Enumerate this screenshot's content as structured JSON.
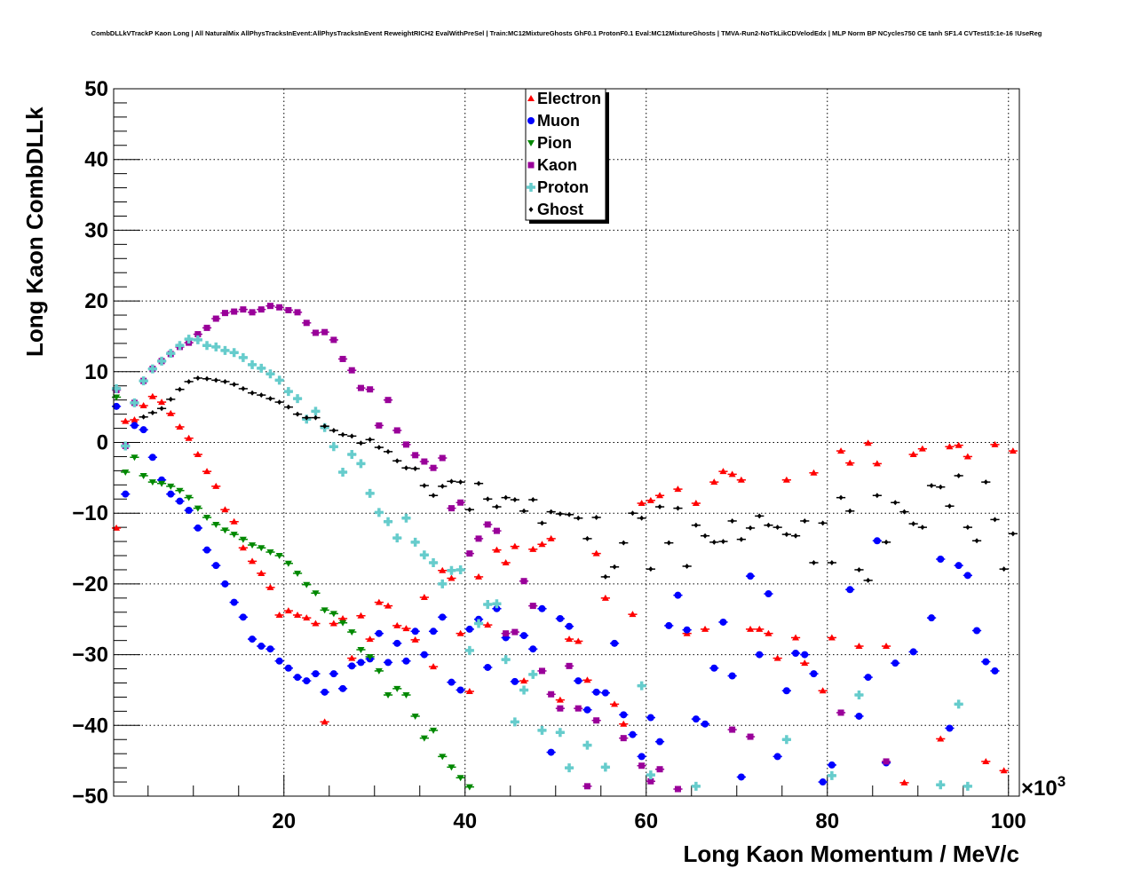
{
  "chart_data": {
    "type": "scatter",
    "title": "CombDLLkVTrackP Kaon Long | All NaturalMix AllPhysTracksInEvent:AllPhysTracksInEvent ReweightRICH2 EvalWithPreSel | Train:MC12MixtureGhosts GhF0.1 ProtonF0.1 Eval:MC12MixtureGhosts | TMVA-Run2-NoTkLikCDVelodEdx | MLP Norm BP NCycles750 CE tanh SF1.4 CVTest15:1e-16 !UseReg",
    "xlabel": "Long Kaon Momentum / MeV/c",
    "ylabel": "Long Kaon CombDLLk",
    "x_multiplier_label": "×10",
    "x_multiplier_exp": "3",
    "xlim": [
      1.2,
      101.2
    ],
    "ylim": [
      -50,
      50
    ],
    "x_ticks": [
      "20",
      "40",
      "60",
      "80",
      "100"
    ],
    "y_ticks": [
      "−50",
      "−40",
      "−30",
      "−20",
      "−10",
      "0",
      "10",
      "20",
      "30",
      "40",
      "50"
    ],
    "grid": true,
    "legend_position": "top-center",
    "x_start": 1.5,
    "x_step": 1.0,
    "series": [
      {
        "name": "Electron",
        "color": "#ff0000",
        "marker": "triangle-up",
        "values": [
          -12.1,
          3.0,
          3.2,
          5.2,
          6.5,
          5.7,
          4.1,
          2.2,
          0.6,
          -1.7,
          -4.1,
          -6.2,
          -9.5,
          -11.2,
          -14.9,
          -16.8,
          -18.5,
          -20.5,
          -24.4,
          -23.8,
          -24.4,
          -24.8,
          -25.6,
          -39.5,
          -25.6,
          -24.9,
          -30.5,
          -24.5,
          -27.8,
          -22.6,
          -23.1,
          -25.9,
          -26.3,
          -27.9,
          -21.9,
          -31.7,
          -18.1,
          -19.2,
          -27.0,
          -35.2,
          -19.0,
          -25.8,
          -15.2,
          -17.0,
          -14.7,
          -33.7,
          -15.1,
          -14.4,
          -13.6,
          -36.4,
          -27.8,
          -28.1,
          -33.6,
          -15.7,
          -22.0,
          -37.0,
          -39.8,
          -24.3,
          -8.6,
          -8.2,
          -7.5,
          null,
          -6.6,
          -27.0,
          -8.6,
          -26.4,
          -5.6,
          -4.1,
          -4.5,
          -5.3,
          -26.4,
          -26.4,
          -27.0,
          -30.5,
          -5.3,
          -27.6,
          -31.2,
          -4.3,
          -35.1,
          -27.6,
          -1.2,
          -2.9,
          -28.8,
          -0.1,
          -3.0,
          -28.8,
          null,
          -48.1,
          -1.7,
          -0.9,
          null,
          -41.9,
          -0.6,
          -0.4,
          -2.0,
          null,
          -45.1,
          -0.3,
          -46.4,
          -1.2
        ]
      },
      {
        "name": "Muon",
        "color": "#0000ff",
        "marker": "circle",
        "values": [
          5.1,
          -7.3,
          2.4,
          1.8,
          -2.1,
          -5.3,
          -7.3,
          -8.3,
          -9.6,
          -12.1,
          -15.2,
          -17.4,
          -20.0,
          -22.6,
          -24.7,
          -27.8,
          -28.8,
          -29.2,
          -30.9,
          -31.9,
          -33.2,
          -33.7,
          -32.7,
          -35.3,
          -32.7,
          -34.8,
          -31.6,
          -31.1,
          -30.6,
          -27.0,
          -31.1,
          -28.4,
          -30.9,
          -26.7,
          -30.0,
          -26.7,
          -24.7,
          -33.9,
          -35.0,
          -26.4,
          -25.0,
          -31.8,
          -23.5,
          -27.6,
          -33.8,
          -27.3,
          -29.2,
          -23.5,
          -43.8,
          -24.9,
          -26.0,
          -33.7,
          -37.8,
          -35.3,
          -35.4,
          -28.4,
          -38.5,
          -41.3,
          -44.4,
          -38.9,
          -42.3,
          -25.9,
          -21.6,
          -26.5,
          -39.1,
          -39.8,
          -31.9,
          -25.4,
          -33.0,
          -47.3,
          -18.9,
          -30.0,
          -21.4,
          -44.4,
          -35.1,
          -29.8,
          -30.0,
          -32.7,
          -48.0,
          -45.6,
          null,
          -20.8,
          -38.7,
          -33.2,
          -13.9,
          -45.3,
          -31.2,
          null,
          -29.6,
          null,
          -24.8,
          -16.5,
          -40.4,
          -17.4,
          -18.8,
          -26.6,
          -31.0,
          -32.3,
          null,
          null
        ]
      },
      {
        "name": "Pion",
        "color": "#008800",
        "marker": "triangle-down",
        "values": [
          6.4,
          -4.2,
          -2.1,
          -4.7,
          -5.6,
          -5.8,
          -6.2,
          -6.8,
          -7.8,
          -9.3,
          -10.6,
          -11.6,
          -12.4,
          -13.0,
          -13.7,
          -14.5,
          -14.9,
          -15.5,
          -16.0,
          -17.1,
          -18.5,
          -20.1,
          -21.3,
          -23.7,
          -24.2,
          -25.5,
          -26.8,
          -29.3,
          -30.3,
          -32.3,
          -35.7,
          -34.8,
          -35.7,
          -38.7,
          -41.8,
          -40.7,
          -44.4,
          -45.9,
          -47.4,
          -48.7
        ]
      },
      {
        "name": "Kaon",
        "color": "#990099",
        "marker": "square",
        "values": [
          7.4,
          -0.5,
          5.6,
          8.7,
          10.4,
          11.5,
          12.5,
          13.5,
          14.1,
          15.3,
          16.2,
          17.5,
          18.3,
          18.5,
          18.8,
          18.4,
          18.8,
          19.3,
          19.1,
          18.7,
          18.4,
          16.9,
          15.5,
          15.6,
          14.5,
          11.8,
          10.2,
          7.7,
          7.5,
          2.4,
          6.0,
          1.7,
          -0.3,
          -1.8,
          -2.7,
          -3.6,
          -2.2,
          -9.3,
          -8.5,
          -15.7,
          -13.6,
          -11.6,
          -12.5,
          -27.0,
          -26.8,
          -19.6,
          -23.1,
          -32.3,
          -35.6,
          -37.6,
          -31.6,
          -37.6,
          -48.6,
          -39.3,
          null,
          null,
          -41.8,
          null,
          -45.7,
          -47.9,
          -46.2,
          null,
          -49.0,
          null,
          null,
          null,
          null,
          null,
          -40.6,
          null,
          -41.6,
          null,
          null,
          null,
          null,
          null,
          null,
          null,
          null,
          null,
          -38.2,
          null,
          null,
          null,
          null,
          -45.1
        ]
      },
      {
        "name": "Proton",
        "color": "#66cccc",
        "marker": "cross",
        "values": [
          7.6,
          -0.5,
          5.6,
          8.7,
          10.4,
          11.5,
          12.6,
          13.7,
          14.6,
          14.5,
          13.7,
          13.5,
          13.0,
          12.7,
          12.0,
          11.0,
          10.5,
          9.7,
          8.8,
          7.2,
          6.2,
          3.3,
          4.4,
          2.1,
          -0.6,
          -4.2,
          -1.7,
          -3.0,
          -7.2,
          -9.9,
          -11.2,
          -13.5,
          -10.7,
          -14.1,
          -15.9,
          -17.0,
          -20.0,
          -18.1,
          -18.0,
          -29.4,
          -25.6,
          -22.9,
          -22.8,
          -30.7,
          -39.5,
          -35.0,
          -32.8,
          -40.7,
          null,
          -41.0,
          -46.0,
          null,
          -42.8,
          null,
          -45.9,
          null,
          null,
          null,
          -34.4,
          -47.0,
          null,
          null,
          null,
          null,
          -48.6,
          null,
          null,
          null,
          null,
          null,
          null,
          null,
          null,
          null,
          -42.0,
          null,
          null,
          null,
          null,
          -47.1,
          null,
          null,
          -35.7,
          null,
          null,
          null,
          null,
          null,
          null,
          null,
          null,
          -48.4,
          null,
          -37.0,
          -48.6
        ]
      },
      {
        "name": "Ghost",
        "color": "#000000",
        "marker": "diamond",
        "values": [
          null,
          null,
          null,
          3.6,
          4.2,
          4.8,
          6.1,
          7.5,
          8.6,
          9.1,
          9.0,
          8.8,
          8.6,
          8.2,
          7.6,
          7.0,
          6.7,
          6.2,
          5.7,
          5.0,
          4.0,
          3.5,
          3.5,
          2.3,
          1.7,
          1.1,
          0.9,
          -0.1,
          0.4,
          -0.7,
          -1.3,
          -2.6,
          -3.6,
          -3.7,
          -6.1,
          -7.5,
          -6.2,
          -5.5,
          -5.6,
          -9.5,
          -5.8,
          -8.0,
          -9.1,
          -7.8,
          -8.1,
          -9.7,
          -8.1,
          -11.4,
          -9.8,
          -10.1,
          -10.2,
          -10.7,
          -13.6,
          -10.6,
          -19.0,
          -17.6,
          -14.2,
          -10.0,
          -10.7,
          -17.9,
          -9.1,
          -14.2,
          -9.3,
          -17.5,
          -11.7,
          -13.2,
          -14.1,
          -14.0,
          -11.1,
          -13.7,
          -12.1,
          -10.4,
          -11.7,
          -12.0,
          -13.0,
          -13.2,
          -11.1,
          -17.0,
          -11.4,
          -17.0,
          -7.8,
          -9.7,
          -18.0,
          -19.5,
          -7.5,
          -14.1,
          -8.5,
          -9.8,
          -11.5,
          -12.0,
          -6.1,
          -6.3,
          -9.0,
          -4.7,
          -12.0,
          -13.9,
          -5.6,
          -10.9,
          -17.9,
          -12.9
        ]
      }
    ]
  }
}
